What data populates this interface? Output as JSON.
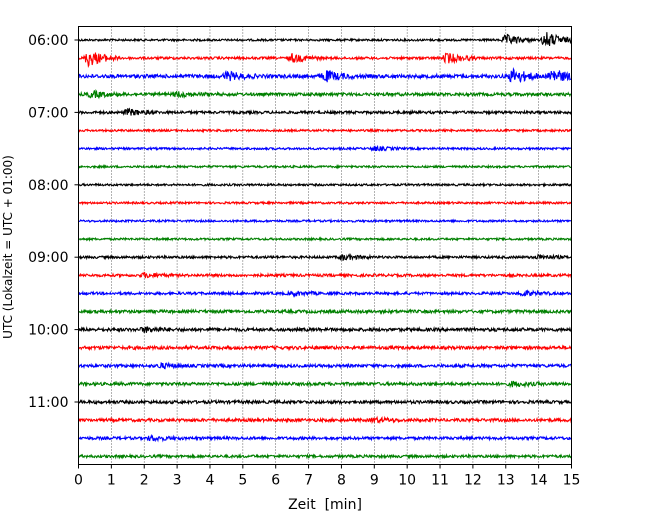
{
  "chart_data": {
    "type": "line",
    "title": "",
    "xlabel": "Zeit  [min]",
    "ylabel": "UTC (Lokalzeit = UTC + 01:00)",
    "xlim": [
      0,
      15
    ],
    "x_ticks": [
      0,
      1,
      2,
      3,
      4,
      5,
      6,
      7,
      8,
      9,
      10,
      11,
      12,
      13,
      14,
      15
    ],
    "x_tick_labels": [
      "0",
      "1",
      "2",
      "3",
      "4",
      "5",
      "6",
      "7",
      "8",
      "9",
      "10",
      "11",
      "12",
      "13",
      "14",
      "15"
    ],
    "y_ticks": [
      "06:00",
      "07:00",
      "08:00",
      "09:00",
      "10:00",
      "11:00"
    ],
    "grid": "vertical dotted lines at each minute",
    "trace_colors": [
      "#000000",
      "#ff0000",
      "#0000ff",
      "#008000"
    ],
    "traces": [
      {
        "start": "06:00",
        "color": "#000000",
        "amp": 1.0,
        "events": [
          {
            "t": 13.0,
            "a": 5
          },
          {
            "t": 14.2,
            "a": 8
          }
        ]
      },
      {
        "start": "06:15",
        "color": "#ff0000",
        "amp": 1.2,
        "events": [
          {
            "t": 0.3,
            "a": 8
          },
          {
            "t": 6.5,
            "a": 4
          },
          {
            "t": 11.2,
            "a": 5
          }
        ]
      },
      {
        "start": "06:30",
        "color": "#0000ff",
        "amp": 1.8,
        "events": [
          {
            "t": 4.5,
            "a": 4
          },
          {
            "t": 7.5,
            "a": 5
          },
          {
            "t": 13.2,
            "a": 7
          },
          {
            "t": 14.4,
            "a": 7
          }
        ]
      },
      {
        "start": "06:45",
        "color": "#008000",
        "amp": 1.5,
        "events": [
          {
            "t": 0.4,
            "a": 3
          },
          {
            "t": 3.0,
            "a": 2.5
          }
        ]
      },
      {
        "start": "07:00",
        "color": "#000000",
        "amp": 1.3,
        "events": [
          {
            "t": 1.5,
            "a": 3
          }
        ]
      },
      {
        "start": "07:15",
        "color": "#ff0000",
        "amp": 1.0,
        "events": []
      },
      {
        "start": "07:30",
        "color": "#0000ff",
        "amp": 1.0,
        "events": [
          {
            "t": 9.0,
            "a": 2
          }
        ]
      },
      {
        "start": "07:45",
        "color": "#008000",
        "amp": 1.0,
        "events": []
      },
      {
        "start": "08:00",
        "color": "#000000",
        "amp": 1.0,
        "events": []
      },
      {
        "start": "08:15",
        "color": "#ff0000",
        "amp": 1.0,
        "events": []
      },
      {
        "start": "08:30",
        "color": "#0000ff",
        "amp": 1.0,
        "events": []
      },
      {
        "start": "08:45",
        "color": "#008000",
        "amp": 1.0,
        "events": []
      },
      {
        "start": "09:00",
        "color": "#000000",
        "amp": 1.2,
        "events": [
          {
            "t": 8.0,
            "a": 2.5
          },
          {
            "t": 14.0,
            "a": 2
          }
        ]
      },
      {
        "start": "09:15",
        "color": "#ff0000",
        "amp": 1.3,
        "events": [
          {
            "t": 2.0,
            "a": 2
          }
        ]
      },
      {
        "start": "09:30",
        "color": "#0000ff",
        "amp": 1.3,
        "events": [
          {
            "t": 6.5,
            "a": 2
          },
          {
            "t": 13.5,
            "a": 2.2
          }
        ]
      },
      {
        "start": "09:45",
        "color": "#008000",
        "amp": 1.5,
        "events": []
      },
      {
        "start": "10:00",
        "color": "#000000",
        "amp": 1.6,
        "events": [
          {
            "t": 2.0,
            "a": 2.2
          }
        ]
      },
      {
        "start": "10:15",
        "color": "#ff0000",
        "amp": 1.6,
        "events": []
      },
      {
        "start": "10:30",
        "color": "#0000ff",
        "amp": 1.5,
        "events": [
          {
            "t": 2.5,
            "a": 2
          }
        ]
      },
      {
        "start": "10:45",
        "color": "#008000",
        "amp": 1.5,
        "events": [
          {
            "t": 13.2,
            "a": 2
          }
        ]
      },
      {
        "start": "11:00",
        "color": "#000000",
        "amp": 1.5,
        "events": []
      },
      {
        "start": "11:15",
        "color": "#ff0000",
        "amp": 1.5,
        "events": [
          {
            "t": 9.0,
            "a": 2
          }
        ]
      },
      {
        "start": "11:30",
        "color": "#0000ff",
        "amp": 1.4,
        "events": [
          {
            "t": 2.2,
            "a": 2
          }
        ]
      },
      {
        "start": "11:45",
        "color": "#008000",
        "amp": 1.3,
        "events": []
      }
    ]
  }
}
